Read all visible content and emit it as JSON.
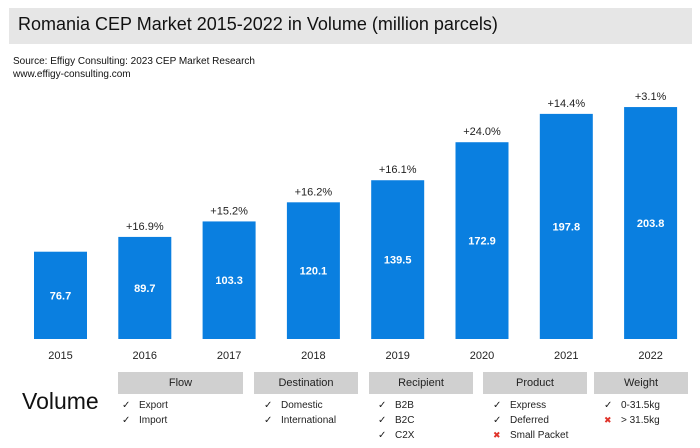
{
  "title": "Romania CEP Market 2015-2022 in Volume (million parcels)",
  "source_line1": "Source: Effigy Consulting: 2023 CEP Market Research",
  "source_line2": "www.effigy-consulting.com",
  "bar_color": "#0a7fe0",
  "chart_data": {
    "type": "bar",
    "title": "Romania CEP Market 2015-2022 in Volume (million parcels)",
    "categories": [
      "2015",
      "2016",
      "2017",
      "2018",
      "2019",
      "2020",
      "2021",
      "2022"
    ],
    "values": [
      76.7,
      89.7,
      103.3,
      120.1,
      139.5,
      172.9,
      197.8,
      203.8
    ],
    "value_labels": [
      "76.7",
      "89.7",
      "103.3",
      "120.1",
      "139.5",
      "172.9",
      "197.8",
      "203.8"
    ],
    "growth_labels": [
      "",
      "+16.9%",
      "+15.2%",
      "+16.2%",
      "+16.1%",
      "+24.0%",
      "+14.4%",
      "+3.1%"
    ],
    "xlabel": "",
    "ylabel": "",
    "ylim": [
      0,
      210
    ],
    "grid": false,
    "legend": "none"
  },
  "volume_label": "Volume",
  "categories_panel": [
    {
      "header": "Flow",
      "items": [
        {
          "label": "Export",
          "status": "check"
        },
        {
          "label": "Import",
          "status": "check"
        }
      ]
    },
    {
      "header": "Destination",
      "items": [
        {
          "label": "Domestic",
          "status": "check"
        },
        {
          "label": "International",
          "status": "check"
        }
      ]
    },
    {
      "header": "Recipient",
      "items": [
        {
          "label": "B2B",
          "status": "check"
        },
        {
          "label": "B2C",
          "status": "check"
        },
        {
          "label": "C2X",
          "status": "check"
        }
      ]
    },
    {
      "header": "Product",
      "items": [
        {
          "label": "Express",
          "status": "check"
        },
        {
          "label": "Deferred",
          "status": "check"
        },
        {
          "label": "Small Packet",
          "status": "cross"
        }
      ]
    },
    {
      "header": "Weight",
      "items": [
        {
          "label": "0-31.5kg",
          "status": "check"
        },
        {
          "label": "> 31.5kg",
          "status": "cross"
        }
      ]
    }
  ]
}
